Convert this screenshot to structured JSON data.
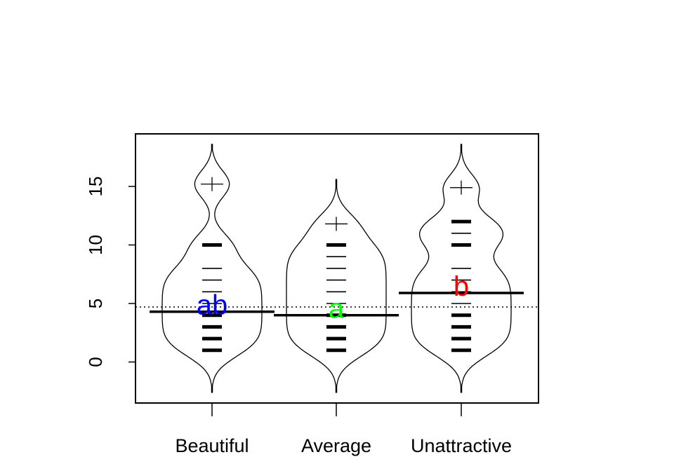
{
  "chart_data": {
    "type": "beanplot",
    "title": "",
    "xlabel": "",
    "ylabel": "",
    "ylim": [
      -3.5,
      19.5
    ],
    "y_ticks": [
      0,
      5,
      10,
      15
    ],
    "y_tick_labels": [
      "0",
      "5",
      "10",
      "15"
    ],
    "categories": [
      "Beautiful",
      "Average",
      "Unattractive"
    ],
    "overall_mean": 4.7,
    "groups": [
      {
        "category": "Beautiful",
        "mean": 4.3,
        "letter": "ab",
        "letter_color": "#0000ff",
        "density_range": [
          -2.6,
          18.6
        ],
        "observations": [
          1,
          2,
          3,
          4,
          5,
          6,
          7,
          8,
          10,
          15.2
        ]
      },
      {
        "category": "Average",
        "mean": 4.0,
        "letter": "a",
        "letter_color": "#00ff00",
        "density_range": [
          -2.6,
          15.6
        ],
        "observations": [
          1,
          2,
          3,
          4,
          5,
          6,
          7,
          8,
          9,
          10,
          11.8
        ]
      },
      {
        "category": "Unattractive",
        "mean": 5.9,
        "letter": "b",
        "letter_color": "#ff0000",
        "density_range": [
          -2.6,
          18.6
        ],
        "observations": [
          1,
          2,
          3,
          4,
          5,
          6,
          7,
          8,
          10,
          11,
          12,
          14.9
        ]
      }
    ],
    "colors": {
      "axis": "#000000",
      "bean": "#000000"
    },
    "grid": false,
    "legend": "none"
  }
}
